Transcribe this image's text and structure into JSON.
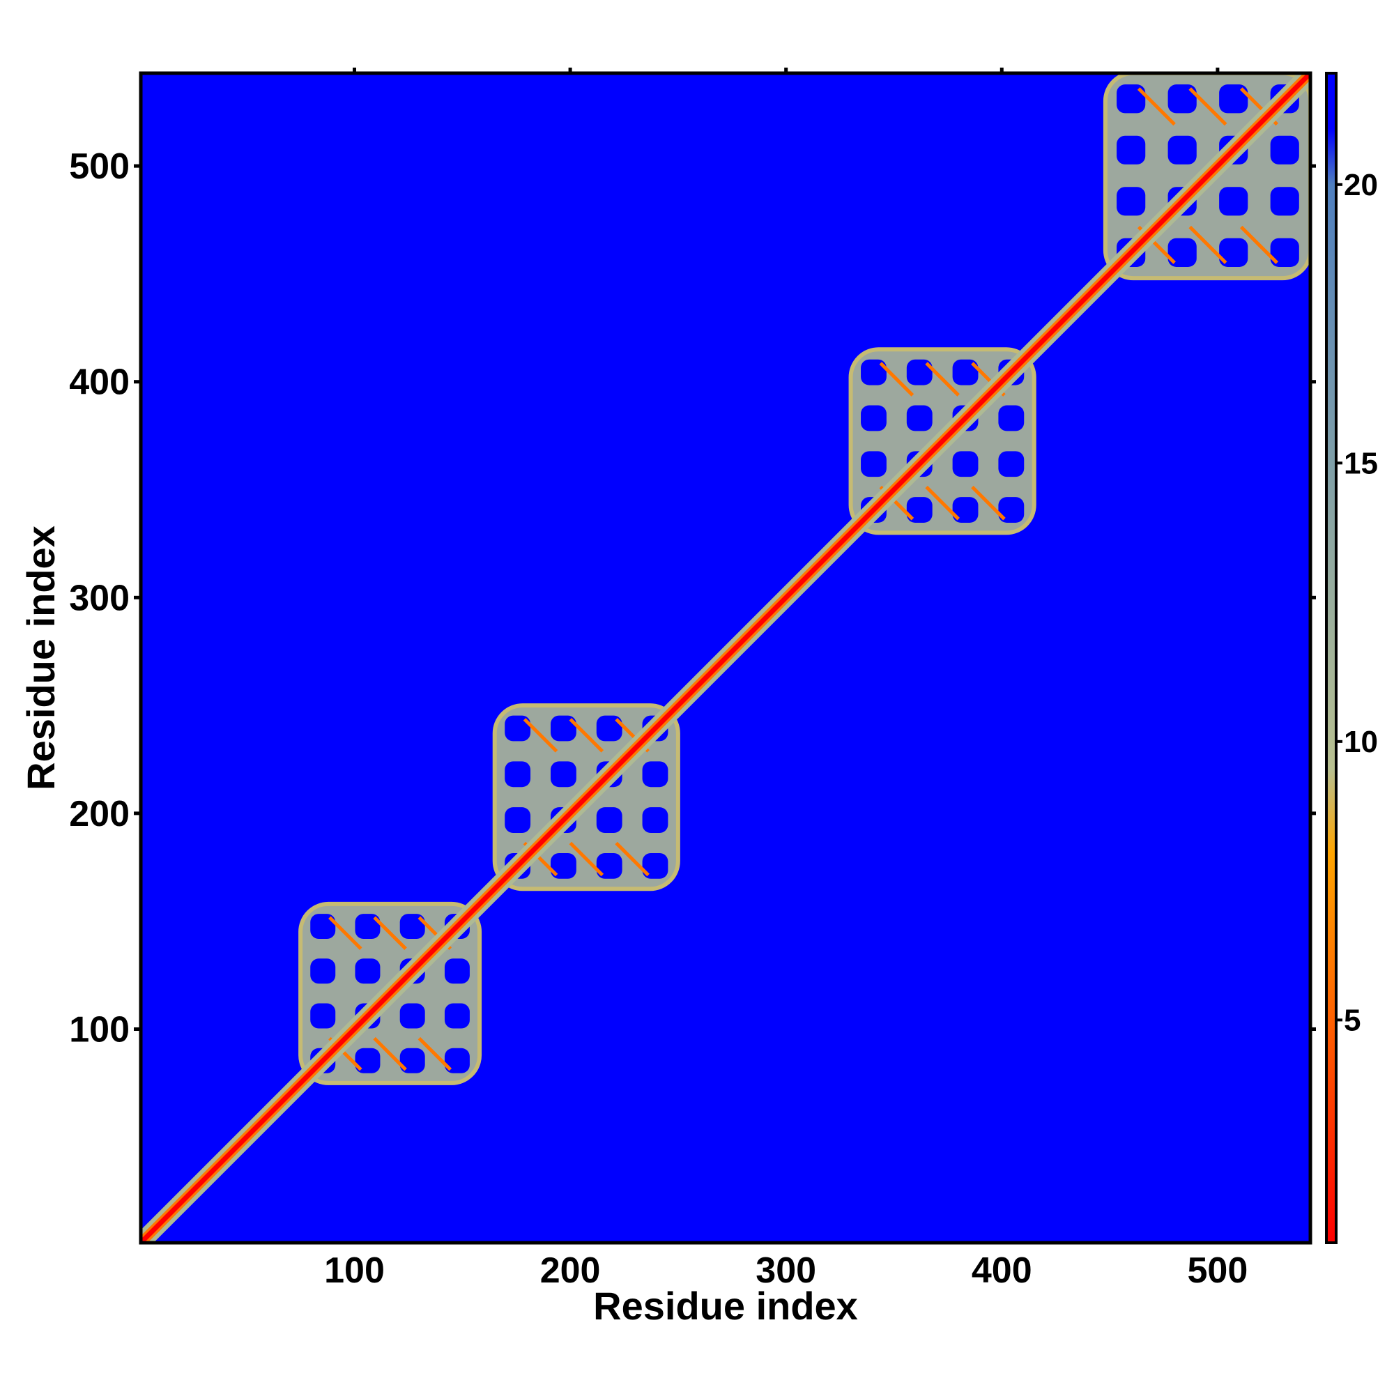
{
  "chart_data": {
    "type": "heatmap",
    "title": "",
    "xlabel": "Residue index",
    "ylabel": "Residue index",
    "xlim": [
      1,
      543
    ],
    "ylim": [
      1,
      543
    ],
    "x_ticks": [
      100,
      200,
      300,
      400,
      500
    ],
    "y_ticks": [
      100,
      200,
      300,
      400,
      500
    ],
    "colorbar": {
      "ticks": [
        5,
        10,
        15,
        20
      ],
      "range": [
        1,
        22
      ],
      "stops": [
        {
          "value": 1,
          "color": "#ff0000"
        },
        {
          "value": 4,
          "color": "#ff4a00"
        },
        {
          "value": 8,
          "color": "#ffa500"
        },
        {
          "value": 9.5,
          "color": "#b8c090"
        },
        {
          "value": 15,
          "color": "#7f9fa8"
        },
        {
          "value": 20,
          "color": "#4f7fbf"
        },
        {
          "value": 21,
          "color": "#0000ff"
        }
      ]
    },
    "background_value": 21,
    "background_color": "#0000ff",
    "diagonal_value": 1,
    "domains": [
      {
        "start": 75,
        "end": 158
      },
      {
        "start": 165,
        "end": 250
      },
      {
        "start": 330,
        "end": 415
      },
      {
        "start": 448,
        "end": 543
      }
    ]
  }
}
